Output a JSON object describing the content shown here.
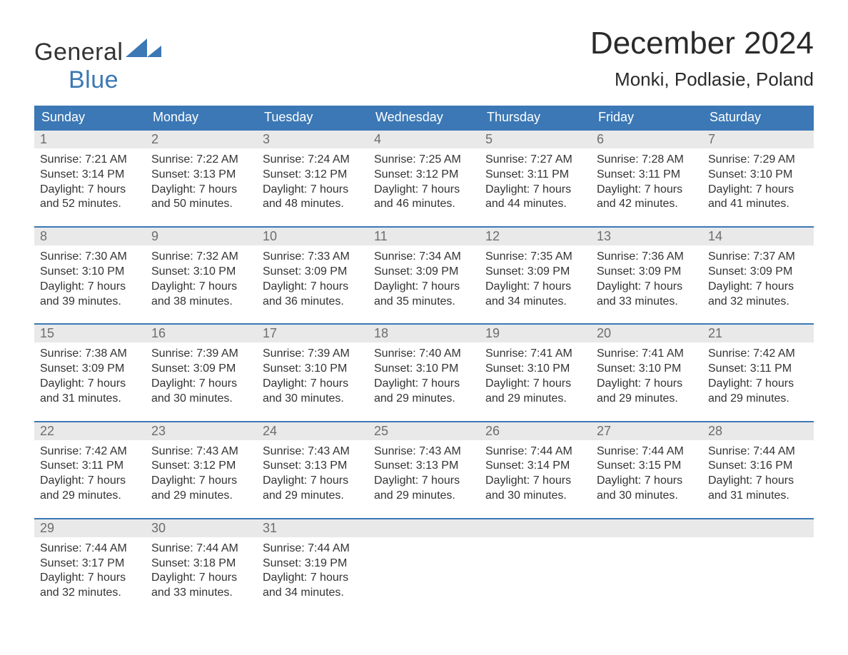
{
  "brand": {
    "word1": "General",
    "word2": "Blue",
    "accent": "#3b78b5",
    "text_color": "#333333"
  },
  "title": "December 2024",
  "location": "Monki, Podlasie, Poland",
  "weekdays": [
    "Sunday",
    "Monday",
    "Tuesday",
    "Wednesday",
    "Thursday",
    "Friday",
    "Saturday"
  ],
  "labels": {
    "sunrise": "Sunrise:",
    "sunset": "Sunset:",
    "daylight": "Daylight:"
  },
  "colors": {
    "header_bg": "#3b78b5",
    "header_text": "#ffffff",
    "daynum_bg": "#e9e9e9",
    "daynum_text": "#6d6d6d",
    "body_text": "#333333",
    "rule": "#3b78b5",
    "page_bg": "#ffffff"
  },
  "typography": {
    "title_fontsize": 44,
    "subtitle_fontsize": 26,
    "weekday_fontsize": 18,
    "daynum_fontsize": 18,
    "body_fontsize": 16,
    "logo_fontsize": 34
  },
  "weeks": [
    [
      {
        "n": "1",
        "rise": "7:21 AM",
        "set": "3:14 PM",
        "dl1": "7 hours",
        "dl2": "and 52 minutes."
      },
      {
        "n": "2",
        "rise": "7:22 AM",
        "set": "3:13 PM",
        "dl1": "7 hours",
        "dl2": "and 50 minutes."
      },
      {
        "n": "3",
        "rise": "7:24 AM",
        "set": "3:12 PM",
        "dl1": "7 hours",
        "dl2": "and 48 minutes."
      },
      {
        "n": "4",
        "rise": "7:25 AM",
        "set": "3:12 PM",
        "dl1": "7 hours",
        "dl2": "and 46 minutes."
      },
      {
        "n": "5",
        "rise": "7:27 AM",
        "set": "3:11 PM",
        "dl1": "7 hours",
        "dl2": "and 44 minutes."
      },
      {
        "n": "6",
        "rise": "7:28 AM",
        "set": "3:11 PM",
        "dl1": "7 hours",
        "dl2": "and 42 minutes."
      },
      {
        "n": "7",
        "rise": "7:29 AM",
        "set": "3:10 PM",
        "dl1": "7 hours",
        "dl2": "and 41 minutes."
      }
    ],
    [
      {
        "n": "8",
        "rise": "7:30 AM",
        "set": "3:10 PM",
        "dl1": "7 hours",
        "dl2": "and 39 minutes."
      },
      {
        "n": "9",
        "rise": "7:32 AM",
        "set": "3:10 PM",
        "dl1": "7 hours",
        "dl2": "and 38 minutes."
      },
      {
        "n": "10",
        "rise": "7:33 AM",
        "set": "3:09 PM",
        "dl1": "7 hours",
        "dl2": "and 36 minutes."
      },
      {
        "n": "11",
        "rise": "7:34 AM",
        "set": "3:09 PM",
        "dl1": "7 hours",
        "dl2": "and 35 minutes."
      },
      {
        "n": "12",
        "rise": "7:35 AM",
        "set": "3:09 PM",
        "dl1": "7 hours",
        "dl2": "and 34 minutes."
      },
      {
        "n": "13",
        "rise": "7:36 AM",
        "set": "3:09 PM",
        "dl1": "7 hours",
        "dl2": "and 33 minutes."
      },
      {
        "n": "14",
        "rise": "7:37 AM",
        "set": "3:09 PM",
        "dl1": "7 hours",
        "dl2": "and 32 minutes."
      }
    ],
    [
      {
        "n": "15",
        "rise": "7:38 AM",
        "set": "3:09 PM",
        "dl1": "7 hours",
        "dl2": "and 31 minutes."
      },
      {
        "n": "16",
        "rise": "7:39 AM",
        "set": "3:09 PM",
        "dl1": "7 hours",
        "dl2": "and 30 minutes."
      },
      {
        "n": "17",
        "rise": "7:39 AM",
        "set": "3:10 PM",
        "dl1": "7 hours",
        "dl2": "and 30 minutes."
      },
      {
        "n": "18",
        "rise": "7:40 AM",
        "set": "3:10 PM",
        "dl1": "7 hours",
        "dl2": "and 29 minutes."
      },
      {
        "n": "19",
        "rise": "7:41 AM",
        "set": "3:10 PM",
        "dl1": "7 hours",
        "dl2": "and 29 minutes."
      },
      {
        "n": "20",
        "rise": "7:41 AM",
        "set": "3:10 PM",
        "dl1": "7 hours",
        "dl2": "and 29 minutes."
      },
      {
        "n": "21",
        "rise": "7:42 AM",
        "set": "3:11 PM",
        "dl1": "7 hours",
        "dl2": "and 29 minutes."
      }
    ],
    [
      {
        "n": "22",
        "rise": "7:42 AM",
        "set": "3:11 PM",
        "dl1": "7 hours",
        "dl2": "and 29 minutes."
      },
      {
        "n": "23",
        "rise": "7:43 AM",
        "set": "3:12 PM",
        "dl1": "7 hours",
        "dl2": "and 29 minutes."
      },
      {
        "n": "24",
        "rise": "7:43 AM",
        "set": "3:13 PM",
        "dl1": "7 hours",
        "dl2": "and 29 minutes."
      },
      {
        "n": "25",
        "rise": "7:43 AM",
        "set": "3:13 PM",
        "dl1": "7 hours",
        "dl2": "and 29 minutes."
      },
      {
        "n": "26",
        "rise": "7:44 AM",
        "set": "3:14 PM",
        "dl1": "7 hours",
        "dl2": "and 30 minutes."
      },
      {
        "n": "27",
        "rise": "7:44 AM",
        "set": "3:15 PM",
        "dl1": "7 hours",
        "dl2": "and 30 minutes."
      },
      {
        "n": "28",
        "rise": "7:44 AM",
        "set": "3:16 PM",
        "dl1": "7 hours",
        "dl2": "and 31 minutes."
      }
    ],
    [
      {
        "n": "29",
        "rise": "7:44 AM",
        "set": "3:17 PM",
        "dl1": "7 hours",
        "dl2": "and 32 minutes."
      },
      {
        "n": "30",
        "rise": "7:44 AM",
        "set": "3:18 PM",
        "dl1": "7 hours",
        "dl2": "and 33 minutes."
      },
      {
        "n": "31",
        "rise": "7:44 AM",
        "set": "3:19 PM",
        "dl1": "7 hours",
        "dl2": "and 34 minutes."
      },
      null,
      null,
      null,
      null
    ]
  ]
}
